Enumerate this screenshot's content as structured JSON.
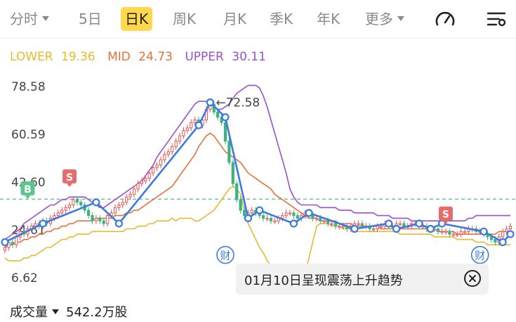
{
  "tabs": [
    {
      "label": "分时",
      "dropdown": true
    },
    {
      "label": "5日"
    },
    {
      "label": "日K",
      "active": true
    },
    {
      "label": "周K"
    },
    {
      "label": "月K"
    },
    {
      "label": "季K"
    },
    {
      "label": "年K"
    },
    {
      "label": "更多",
      "dropdown": true
    }
  ],
  "icons": {
    "indicator": "gauge-icon",
    "settings": "chart-settings-icon"
  },
  "legend": {
    "lower": {
      "label": "LOWER",
      "value": "19.36",
      "color": "#e8b92f"
    },
    "mid": {
      "label": "MID",
      "value": "24.73",
      "color": "#e7703a"
    },
    "upper": {
      "label": "UPPER",
      "value": "30.11",
      "color": "#9b4fd0"
    }
  },
  "colors": {
    "up": "#e85656",
    "down": "#3fb27f",
    "trend": "#3b7be0",
    "dashed": "#3fb27f"
  },
  "chart_data": {
    "type": "candlestick",
    "y_ticks": [
      "78.58",
      "60.59",
      "42.60",
      "24.61",
      "6.62"
    ],
    "ylim": [
      6.62,
      78.58
    ],
    "current_price_line": 36.2,
    "annotations": {
      "high_label": "72.58",
      "buy_marker": "B",
      "sell_markers": [
        "S",
        "S"
      ],
      "event_marker": "财"
    },
    "trend_points": [
      [
        0,
        20
      ],
      [
        10,
        27
      ],
      [
        24,
        35
      ],
      [
        30,
        27
      ],
      [
        51,
        64
      ],
      [
        54,
        72.6
      ],
      [
        58,
        67
      ],
      [
        64,
        29
      ],
      [
        67,
        32
      ],
      [
        76,
        27
      ],
      [
        80,
        31
      ],
      [
        92,
        25
      ],
      [
        101,
        27
      ],
      [
        103,
        25
      ],
      [
        109,
        27
      ],
      [
        112,
        25
      ],
      [
        115,
        27
      ],
      [
        126,
        24
      ],
      [
        131,
        20
      ],
      [
        133,
        23
      ]
    ],
    "lower_band": [
      14,
      13,
      13,
      13,
      13,
      14,
      14,
      15,
      15,
      16,
      17,
      18,
      18,
      19,
      20,
      21,
      21,
      22,
      22,
      23,
      23,
      23,
      23,
      24,
      24,
      24,
      24,
      24,
      24,
      24,
      24,
      24,
      25,
      25,
      25,
      26,
      26,
      26,
      27,
      27,
      28,
      28,
      28,
      28,
      29,
      28,
      29,
      29,
      29,
      29,
      28,
      28,
      29,
      30,
      31,
      32,
      34,
      36,
      38,
      40,
      41,
      40,
      38,
      32,
      27,
      24,
      21,
      18,
      16,
      13,
      11,
      10,
      9,
      8,
      8,
      7,
      7,
      7,
      8,
      9,
      14,
      20,
      26,
      27,
      27,
      27,
      26,
      26,
      26,
      25,
      25,
      25,
      24,
      24,
      24,
      24,
      24,
      24,
      24,
      24,
      24,
      24,
      24,
      24,
      23,
      23,
      23,
      23,
      23,
      23,
      23,
      23,
      23,
      22,
      22,
      22,
      22,
      22,
      22,
      21,
      21,
      21,
      21,
      21,
      20,
      20,
      20,
      19,
      19,
      19,
      19,
      19,
      19,
      19
    ],
    "mid_band": [
      18,
      19,
      19,
      20,
      20,
      21,
      21,
      22,
      22,
      23,
      23,
      24,
      24,
      25,
      25,
      26,
      26,
      27,
      27,
      28,
      28,
      28,
      28,
      28,
      29,
      29,
      29,
      29,
      29,
      30,
      30,
      30,
      31,
      31,
      32,
      32,
      33,
      34,
      35,
      36,
      37,
      38,
      39,
      40,
      41,
      43,
      45,
      47,
      49,
      51,
      53,
      56,
      58,
      60,
      61,
      60,
      58,
      56,
      54,
      53,
      52,
      51,
      50,
      48,
      46,
      45,
      44,
      43,
      42,
      41,
      40,
      38,
      37,
      36,
      35,
      34,
      33,
      32,
      31,
      30,
      29,
      29,
      29,
      28,
      28,
      28,
      28,
      28,
      27,
      27,
      27,
      27,
      26,
      26,
      26,
      26,
      26,
      26,
      26,
      25,
      25,
      25,
      25,
      25,
      25,
      25,
      25,
      25,
      25,
      25,
      25,
      25,
      25,
      25,
      24,
      24,
      24,
      24,
      24,
      23,
      23,
      23,
      23,
      23,
      23,
      23,
      23,
      23,
      23,
      23,
      24,
      24,
      24,
      24
    ],
    "upper_band": [
      21,
      22,
      23,
      24,
      25,
      27,
      28,
      29,
      30,
      31,
      32,
      33,
      34,
      34,
      35,
      36,
      36,
      37,
      37,
      37,
      37,
      37,
      36,
      35,
      34,
      33,
      33,
      34,
      35,
      36,
      37,
      38,
      39,
      40,
      41,
      42,
      43,
      45,
      47,
      49,
      52,
      54,
      56,
      58,
      60,
      62,
      64,
      66,
      68,
      70,
      72,
      73,
      73,
      73,
      72,
      71,
      70,
      70,
      71,
      72,
      74,
      76,
      77,
      78,
      79,
      79,
      79,
      78,
      75,
      71,
      66,
      61,
      56,
      51,
      46,
      40,
      37,
      35,
      34,
      34,
      34,
      34,
      34,
      33,
      33,
      33,
      33,
      33,
      32,
      32,
      32,
      32,
      31,
      31,
      31,
      31,
      31,
      31,
      30,
      30,
      30,
      30,
      29,
      29,
      29,
      29,
      29,
      28,
      28,
      28,
      28,
      28,
      28,
      28,
      28,
      28,
      28,
      28,
      28,
      28,
      28,
      28,
      29,
      29,
      30,
      30,
      30,
      30,
      30,
      30,
      30,
      30,
      30,
      30
    ],
    "close_prices": [
      18,
      20,
      19,
      22,
      24,
      23,
      25,
      26,
      27,
      26,
      28,
      27,
      29,
      30,
      31,
      32,
      33,
      34,
      36,
      35,
      34,
      32,
      30,
      28,
      29,
      28,
      27,
      30,
      31,
      33,
      34,
      35,
      37,
      38,
      40,
      42,
      43,
      44,
      46,
      48,
      49,
      51,
      53,
      54,
      56,
      58,
      60,
      62,
      63,
      65,
      66,
      64,
      66,
      70,
      72,
      69,
      67,
      65,
      58,
      50,
      42,
      36,
      32,
      30,
      31,
      32,
      31,
      30,
      29,
      29,
      28,
      28,
      29,
      30,
      31,
      31,
      30,
      29,
      30,
      31,
      30,
      29,
      29,
      28,
      28,
      27,
      27,
      26,
      26,
      26,
      25,
      26,
      27,
      27,
      26,
      26,
      25,
      25,
      26,
      26,
      27,
      26,
      26,
      27,
      27,
      26,
      26,
      27,
      27,
      26,
      26,
      25,
      25,
      25,
      24,
      24,
      24,
      23,
      23,
      23,
      24,
      24,
      25,
      25,
      24,
      24,
      23,
      22,
      21,
      20,
      22,
      24,
      25,
      26
    ]
  },
  "toast": {
    "text": "01月10日呈现震荡上升趋势"
  },
  "volume": {
    "label": "成交量",
    "value": "542.2万股"
  }
}
